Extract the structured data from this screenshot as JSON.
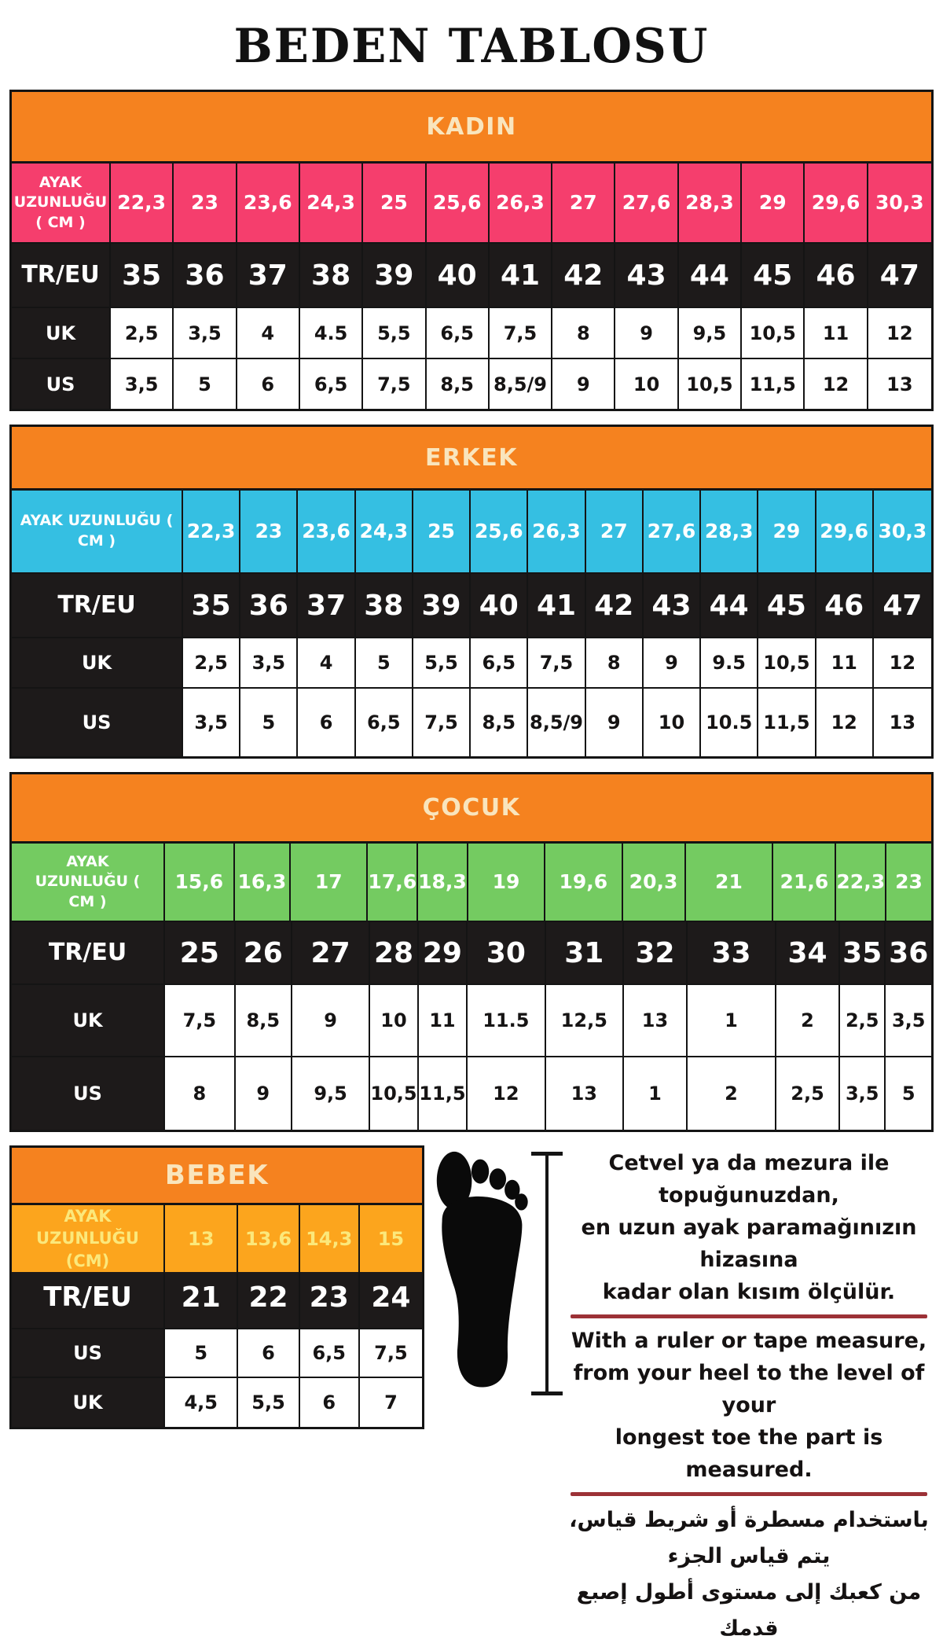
{
  "page": {
    "title": "BEDEN TABLOSU"
  },
  "colors": {
    "header_bg": "#f5821f",
    "header_text": "#f9e5bd",
    "dark_row": "#1d1a1a",
    "divider": "#9c3136"
  },
  "tables": {
    "main": [
      {
        "id": "kadin",
        "title": "KADIN",
        "accent": "#f53e6d",
        "accent_text": "#ffffff",
        "rows": [
          {
            "label": "AYAK UZUNLUĞU ( CM )",
            "type": "length",
            "values": [
              "22,3",
              "23",
              "23,6",
              "24,3",
              "25",
              "25,6",
              "26,3",
              "27",
              "27,6",
              "28,3",
              "29",
              "29,6",
              "30,3"
            ]
          },
          {
            "label": "TR/EU",
            "type": "dark",
            "values": [
              "35",
              "36",
              "37",
              "38",
              "39",
              "40",
              "41",
              "42",
              "43",
              "44",
              "45",
              "46",
              "47"
            ]
          },
          {
            "label": "UK",
            "type": "light",
            "values": [
              "2,5",
              "3,5",
              "4",
              "4.5",
              "5,5",
              "6,5",
              "7,5",
              "8",
              "9",
              "9,5",
              "10,5",
              "11",
              "12"
            ]
          },
          {
            "label": "US",
            "type": "light",
            "values": [
              "3,5",
              "5",
              "6",
              "6,5",
              "7,5",
              "8,5",
              "8,5/9",
              "9",
              "10",
              "10,5",
              "11,5",
              "12",
              "13"
            ]
          }
        ]
      },
      {
        "id": "erkek",
        "title": "ERKEK",
        "accent": "#35bfe2",
        "accent_text": "#ffffff",
        "rows": [
          {
            "label": "AYAK UZUNLUĞU ( CM )",
            "type": "length",
            "values": [
              "22,3",
              "23",
              "23,6",
              "24,3",
              "25",
              "25,6",
              "26,3",
              "27",
              "27,6",
              "28,3",
              "29",
              "29,6",
              "30,3"
            ]
          },
          {
            "label": "TR/EU",
            "type": "dark",
            "values": [
              "35",
              "36",
              "37",
              "38",
              "39",
              "40",
              "41",
              "42",
              "43",
              "44",
              "45",
              "46",
              "47"
            ]
          },
          {
            "label": "UK",
            "type": "light",
            "values": [
              "2,5",
              "3,5",
              "4",
              "5",
              "5,5",
              "6,5",
              "7,5",
              "8",
              "9",
              "9.5",
              "10,5",
              "11",
              "12"
            ]
          },
          {
            "label": "US",
            "type": "light",
            "values": [
              "3,5",
              "5",
              "6",
              "6,5",
              "7,5",
              "8,5",
              "8,5/9",
              "9",
              "10",
              "10.5",
              "11,5",
              "12",
              "13"
            ]
          }
        ]
      },
      {
        "id": "cocuk",
        "title": "ÇOCUK",
        "accent": "#74cb61",
        "accent_text": "#ffffff",
        "rows": [
          {
            "label": "AYAK UZUNLUĞU ( CM )",
            "type": "length",
            "values": [
              "15,6",
              "16,3",
              "17",
              "17,6",
              "18,3",
              "19",
              "19,6",
              "20,3",
              "21",
              "21,6",
              "22,3",
              "23"
            ]
          },
          {
            "label": "TR/EU",
            "type": "dark",
            "values": [
              "25",
              "26",
              "27",
              "28",
              "29",
              "30",
              "31",
              "32",
              "33",
              "34",
              "35",
              "36"
            ]
          },
          {
            "label": "UK",
            "type": "light",
            "values": [
              "7,5",
              "8,5",
              "9",
              "10",
              "11",
              "11.5",
              "12,5",
              "13",
              "1",
              "2",
              "2,5",
              "3,5"
            ]
          },
          {
            "label": "US",
            "type": "light",
            "values": [
              "8",
              "9",
              "9,5",
              "10,5",
              "11,5",
              "12",
              "13",
              "1",
              "2",
              "2,5",
              "3,5",
              "5"
            ]
          }
        ]
      }
    ],
    "baby": {
      "id": "bebek",
      "title": "BEBEK",
      "accent": "#fca51d",
      "accent_text": "#fbe87b",
      "rows": [
        {
          "label": "AYAK UZUNLUĞU (CM)",
          "type": "length",
          "values": [
            "13",
            "13,6",
            "14,3",
            "15"
          ]
        },
        {
          "label": "TR/EU",
          "type": "dark",
          "values": [
            "21",
            "22",
            "23",
            "24"
          ]
        },
        {
          "label": "US",
          "type": "light",
          "values": [
            "5",
            "6",
            "6,5",
            "7,5"
          ]
        },
        {
          "label": "UK",
          "type": "light",
          "values": [
            "4,5",
            "5,5",
            "6",
            "7"
          ]
        }
      ]
    }
  },
  "info": {
    "tr_lines": [
      "Cetvel ya da mezura ile topuğunuzdan,",
      "en uzun ayak paramağınızın hizasına",
      "kadar olan kısım ölçülür."
    ],
    "en_lines": [
      "With a ruler or tape measure,",
      "from your heel to the level of your",
      "longest toe the part is measured."
    ],
    "ar_lines": [
      "باستخدام مسطرة أو شريط قياس، يتم قياس الجزء",
      "من كعبك إلى مستوى أطول إصبع قدمك"
    ],
    "icons": {
      "foot": "foot-silhouette",
      "measure": "vertical-measure-line"
    }
  }
}
